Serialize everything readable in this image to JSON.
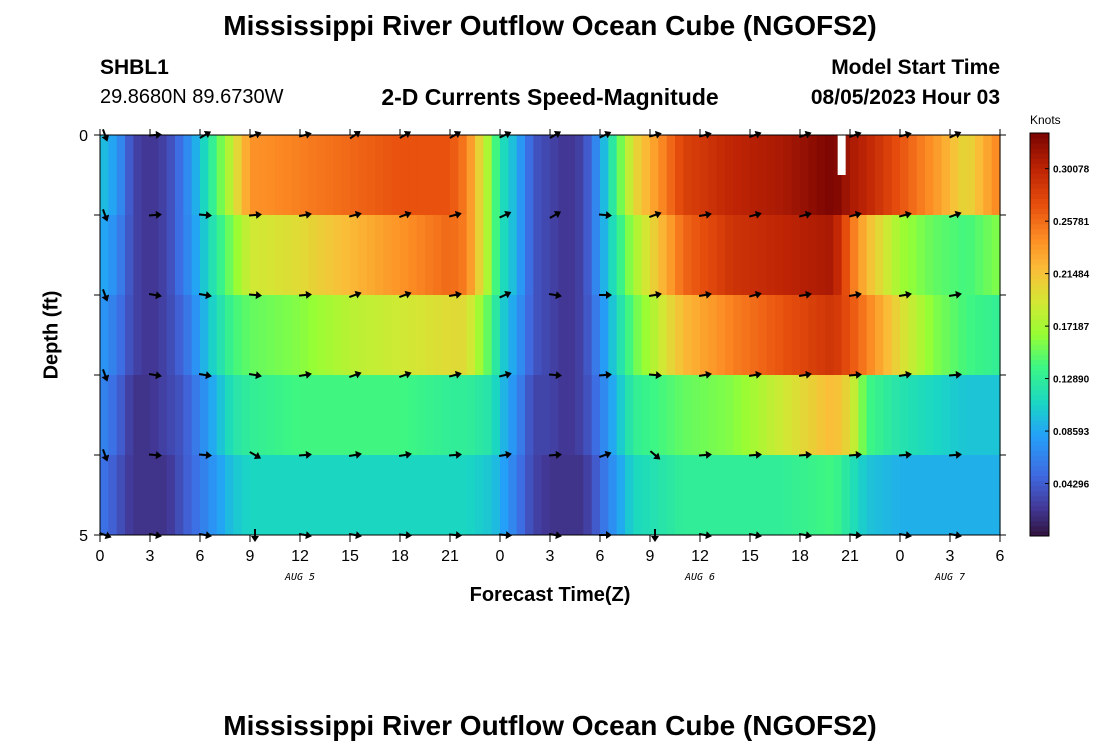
{
  "page": {
    "title": "Mississippi River Outflow Ocean Cube (NGOFS2)",
    "bottom_title": "Mississippi River Outflow Ocean Cube (NGOFS2)",
    "station_id": "SHBL1",
    "coordinates": "29.8680N  89.6730W",
    "subtitle": "2-D Currents Speed-Magnitude",
    "model_start_label": "Model Start Time",
    "model_start_value": "08/05/2023 Hour 03"
  },
  "chart_data": {
    "type": "heatmap",
    "title": "2-D Currents Speed-Magnitude",
    "xlabel": "Forecast Time(Z)",
    "ylabel": "Depth (ft)",
    "x_range_hours": [
      0,
      54
    ],
    "y_range": [
      0,
      5
    ],
    "y_tick_labels": [
      "0",
      "5"
    ],
    "x_tick_labels": [
      "0",
      "3",
      "6",
      "9",
      "12",
      "15",
      "18",
      "21",
      "0",
      "3",
      "6",
      "9",
      "12",
      "15",
      "18",
      "21",
      "0",
      "3",
      "6"
    ],
    "date_labels": [
      {
        "label": "AUG 5",
        "hour": 12
      },
      {
        "label": "AUG 6",
        "hour": 36
      },
      {
        "label": "AUG 7",
        "hour": 51
      }
    ],
    "colorbar": {
      "label": "Knots",
      "min": 0.0,
      "max": 0.33,
      "tick_labels": [
        "0.30078",
        "0.25781",
        "0.21484",
        "0.17187",
        "0.12890",
        "0.08593",
        "0.04296"
      ],
      "tick_values": [
        0.30078,
        0.25781,
        0.21484,
        0.17187,
        0.1289,
        0.08593,
        0.04296
      ]
    },
    "depth_layers": 5,
    "time_knots_hours": [
      0,
      1,
      2,
      3,
      4,
      5,
      6.5,
      8,
      9,
      12,
      15,
      18,
      21,
      22,
      23.5,
      24,
      25,
      26,
      27,
      28,
      29,
      30,
      32,
      35,
      38,
      41,
      44,
      45,
      46,
      48,
      50,
      52,
      54
    ],
    "speed_layers_knots": [
      [
        0.1,
        0.08,
        0.03,
        0.02,
        0.03,
        0.06,
        0.12,
        0.19,
        0.24,
        0.25,
        0.26,
        0.27,
        0.27,
        0.25,
        0.16,
        0.12,
        0.09,
        0.04,
        0.03,
        0.02,
        0.03,
        0.08,
        0.2,
        0.28,
        0.3,
        0.31,
        0.33,
        0.31,
        0.3,
        0.27,
        0.24,
        0.2,
        0.25
      ],
      [
        0.09,
        0.07,
        0.03,
        0.02,
        0.03,
        0.06,
        0.11,
        0.16,
        0.19,
        0.2,
        0.22,
        0.24,
        0.26,
        0.25,
        0.16,
        0.12,
        0.09,
        0.04,
        0.03,
        0.02,
        0.03,
        0.08,
        0.17,
        0.26,
        0.29,
        0.3,
        0.31,
        0.26,
        0.22,
        0.17,
        0.15,
        0.14,
        0.16
      ],
      [
        0.08,
        0.06,
        0.03,
        0.02,
        0.03,
        0.05,
        0.1,
        0.14,
        0.15,
        0.16,
        0.18,
        0.19,
        0.2,
        0.2,
        0.14,
        0.11,
        0.08,
        0.04,
        0.03,
        0.02,
        0.03,
        0.07,
        0.15,
        0.22,
        0.25,
        0.27,
        0.29,
        0.27,
        0.25,
        0.2,
        0.16,
        0.14,
        0.13
      ],
      [
        0.07,
        0.05,
        0.02,
        0.02,
        0.03,
        0.04,
        0.08,
        0.12,
        0.13,
        0.14,
        0.14,
        0.14,
        0.13,
        0.13,
        0.12,
        0.1,
        0.07,
        0.03,
        0.03,
        0.02,
        0.03,
        0.06,
        0.13,
        0.15,
        0.16,
        0.19,
        0.22,
        0.2,
        0.14,
        0.12,
        0.11,
        0.1,
        0.1
      ],
      [
        0.06,
        0.04,
        0.02,
        0.02,
        0.02,
        0.04,
        0.07,
        0.1,
        0.11,
        0.11,
        0.11,
        0.11,
        0.11,
        0.11,
        0.1,
        0.09,
        0.06,
        0.03,
        0.02,
        0.02,
        0.02,
        0.05,
        0.11,
        0.13,
        0.13,
        0.13,
        0.14,
        0.12,
        0.1,
        0.09,
        0.09,
        0.09,
        0.09
      ]
    ],
    "missing_cell": {
      "hour": 44.5,
      "layer": 0,
      "height_fraction": 0.5
    },
    "arrow_hours": [
      0,
      3,
      6,
      9,
      12,
      15,
      18,
      21,
      24,
      27,
      30,
      33,
      36,
      39,
      42,
      45,
      48,
      51
    ],
    "arrow_depths": [
      0,
      1,
      2,
      3,
      4,
      5
    ],
    "arrow_directions_deg": [
      [
        -70,
        5,
        30,
        20,
        15,
        35,
        30,
        30,
        25,
        30,
        25,
        15,
        15,
        20,
        20,
        20,
        15,
        25
      ],
      [
        -70,
        5,
        -5,
        5,
        10,
        15,
        20,
        15,
        25,
        30,
        -5,
        20,
        10,
        15,
        15,
        15,
        15,
        20
      ],
      [
        -70,
        -10,
        -10,
        -5,
        5,
        20,
        20,
        10,
        25,
        -10,
        0,
        10,
        10,
        15,
        10,
        10,
        10,
        10
      ],
      [
        -70,
        -10,
        -10,
        -10,
        10,
        20,
        20,
        15,
        15,
        -5,
        5,
        -5,
        10,
        10,
        10,
        5,
        10,
        5
      ],
      [
        -70,
        -5,
        -5,
        -30,
        5,
        10,
        10,
        5,
        10,
        5,
        20,
        -40,
        5,
        5,
        5,
        5,
        5,
        5
      ],
      [
        -20,
        -10,
        -10,
        -90,
        -10,
        -10,
        -5,
        -5,
        -5,
        -10,
        0,
        -90,
        -10,
        -10,
        -10,
        -5,
        -10,
        -10
      ]
    ]
  }
}
